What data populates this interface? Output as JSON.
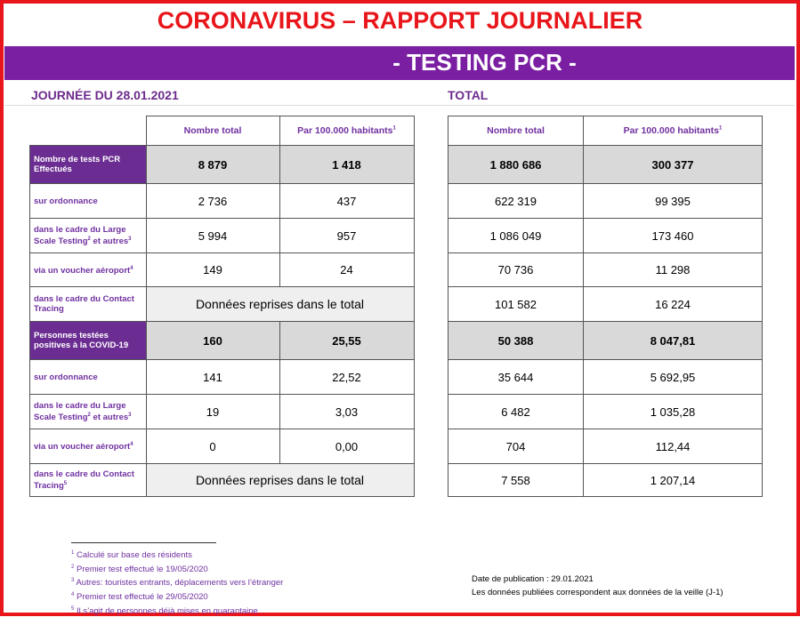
{
  "header": {
    "title": "CORONAVIRUS – RAPPORT JOURNALIER",
    "subtitle": "- TESTING PCR -"
  },
  "daily": {
    "heading": "JOURNÉE DU 28.01.2021",
    "columns": [
      "Nombre total",
      [
        "Par 100.000 habitants",
        "1"
      ]
    ]
  },
  "total": {
    "heading": "TOTAL",
    "columns": [
      "Nombre total",
      [
        "Par 100.000 habitants",
        "1"
      ]
    ]
  },
  "rows": [
    {
      "label": [
        "Nombre de tests PCR Effectués"
      ],
      "bold": true,
      "daily": [
        "8 879",
        "1 418"
      ],
      "total": [
        "1 880 686",
        "300 377"
      ]
    },
    {
      "label": [
        "sur ordonnance"
      ],
      "bold": false,
      "daily": [
        "2 736",
        "437"
      ],
      "total": [
        "622 319",
        "99 395"
      ]
    },
    {
      "label": [
        "dans le cadre du Large Scale Testing",
        "2",
        " et autres",
        "3"
      ],
      "bold": false,
      "daily": [
        "5 994",
        "957"
      ],
      "total": [
        "1 086 049",
        "173 460"
      ]
    },
    {
      "label": [
        "via un voucher aéroport",
        "4"
      ],
      "bold": false,
      "daily": [
        "149",
        "24"
      ],
      "total": [
        "70 736",
        "11 298"
      ]
    },
    {
      "label": [
        "dans le cadre du Contact Tracing"
      ],
      "bold": false,
      "daily_merged": "Données reprises dans le total",
      "total": [
        "101 582",
        "16 224"
      ]
    },
    {
      "label": [
        "Personnes testées positives à la COVID-19"
      ],
      "bold": true,
      "daily": [
        "160",
        "25,55"
      ],
      "total": [
        "50 388",
        "8 047,81"
      ]
    },
    {
      "label": [
        "sur ordonnance"
      ],
      "bold": false,
      "daily": [
        "141",
        "22,52"
      ],
      "total": [
        "35 644",
        "5 692,95"
      ]
    },
    {
      "label": [
        "dans le cadre du Large Scale Testing",
        "2",
        " et autres",
        "3"
      ],
      "bold": false,
      "daily": [
        "19",
        "3,03"
      ],
      "total": [
        "6 482",
        "1 035,28"
      ]
    },
    {
      "label": [
        "via un voucher aéroport",
        "4"
      ],
      "bold": false,
      "daily": [
        "0",
        "0,00"
      ],
      "total": [
        "704",
        "112,44"
      ]
    },
    {
      "label": [
        "dans le cadre du Contact Tracing",
        "5"
      ],
      "bold": false,
      "daily_merged": "Données reprises dans le total",
      "total": [
        "7 558",
        "1 207,14"
      ]
    }
  ],
  "footnotes": [
    {
      "mark": "1",
      "text": " Calculé sur base des résidents"
    },
    {
      "mark": "2",
      "text": " Premier test effectué le 19/05/2020"
    },
    {
      "mark": "3",
      "text": " Autres: touristes entrants, déplacements vers l’étranger"
    },
    {
      "mark": "4",
      "text": " Premier test effectué le 29/05/2020"
    },
    {
      "mark": "5",
      "text": " Il s’agit de personnes déjà mises en quarantaine"
    }
  ],
  "publication": [
    "Date de publication : 29.01.2021",
    "Les données publiées correspondent aux données de la veille (J-1)"
  ]
}
